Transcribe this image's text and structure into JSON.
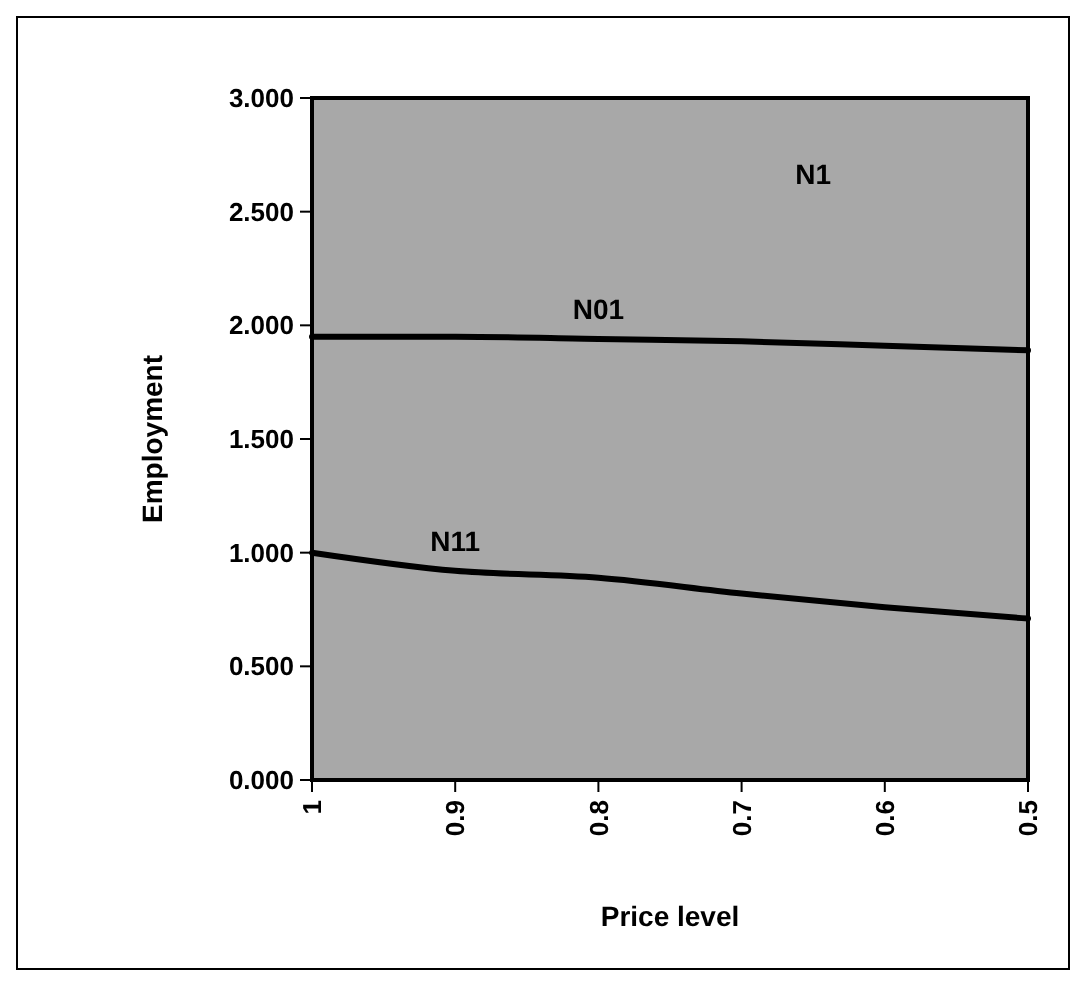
{
  "chart_data": {
    "type": "line",
    "xlabel": "Price level",
    "ylabel": "Employment",
    "x": [
      1,
      0.9,
      0.8,
      0.7,
      0.6,
      0.5
    ],
    "series": [
      {
        "name": "N01",
        "color": "#000000",
        "values": [
          1.95,
          1.95,
          1.94,
          1.93,
          1.91,
          1.89
        ]
      },
      {
        "name": "N11",
        "color": "#000000",
        "values": [
          1.0,
          0.92,
          0.89,
          0.82,
          0.76,
          0.71
        ]
      }
    ],
    "annotations": [
      "N1"
    ],
    "xlim": [
      1,
      0.5
    ],
    "xticks": [
      1,
      0.9,
      0.8,
      0.7,
      0.6,
      0.5
    ],
    "ylim": [
      0,
      3
    ],
    "yticks": [
      {
        "value": 0,
        "label": "0.000"
      },
      {
        "value": 0.5,
        "label": "0.500"
      },
      {
        "value": 1,
        "label": "1.000"
      },
      {
        "value": 1.5,
        "label": "1.500"
      },
      {
        "value": 2,
        "label": "2.000"
      },
      {
        "value": 2.5,
        "label": "2.500"
      },
      {
        "value": 3,
        "label": "3.000"
      }
    ],
    "grid": false,
    "marker": "none",
    "line_style": "solid"
  }
}
